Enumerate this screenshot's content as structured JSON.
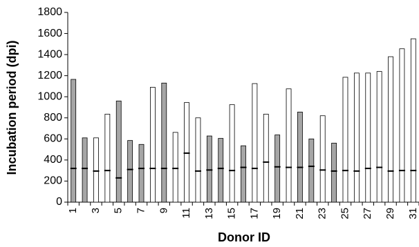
{
  "chart_data": {
    "type": "bar",
    "title": "",
    "xlabel": "Donor ID",
    "ylabel": "Incubation period (dpi)",
    "ylim": [
      0,
      1800
    ],
    "yticks": [
      0,
      200,
      400,
      600,
      800,
      1000,
      1200,
      1400,
      1600,
      1800
    ],
    "xtick_labels": [
      "1",
      "3",
      "5",
      "7",
      "9",
      "11",
      "13",
      "15",
      "17",
      "19",
      "21",
      "23",
      "25",
      "27",
      "29",
      "31"
    ],
    "grid": false,
    "legend": "none",
    "colors": {
      "gray": "#a6a6a6",
      "white": "#ffffff"
    },
    "categories": [
      1,
      2,
      3,
      4,
      5,
      6,
      7,
      8,
      9,
      10,
      11,
      12,
      13,
      14,
      15,
      16,
      17,
      18,
      19,
      20,
      21,
      22,
      23,
      24,
      25,
      26,
      27,
      28,
      29,
      30,
      31
    ],
    "values": [
      1165,
      610,
      610,
      835,
      960,
      585,
      548,
      1090,
      1130,
      662,
      945,
      800,
      628,
      605,
      925,
      535,
      1125,
      835,
      638,
      1075,
      855,
      600,
      820,
      560,
      1185,
      1225,
      1225,
      1240,
      1380,
      1455,
      1550
    ],
    "markers": [
      320,
      320,
      295,
      300,
      230,
      310,
      320,
      320,
      320,
      320,
      465,
      295,
      305,
      320,
      300,
      330,
      320,
      380,
      335,
      330,
      330,
      340,
      305,
      295,
      300,
      295,
      320,
      330,
      295,
      300,
      300
    ],
    "fills": [
      "gray",
      "gray",
      "white",
      "white",
      "gray",
      "gray",
      "gray",
      "white",
      "gray",
      "white",
      "white",
      "white",
      "gray",
      "gray",
      "white",
      "gray",
      "white",
      "white",
      "gray",
      "white",
      "gray",
      "gray",
      "white",
      "gray",
      "white",
      "white",
      "white",
      "white",
      "white",
      "white",
      "white"
    ]
  }
}
